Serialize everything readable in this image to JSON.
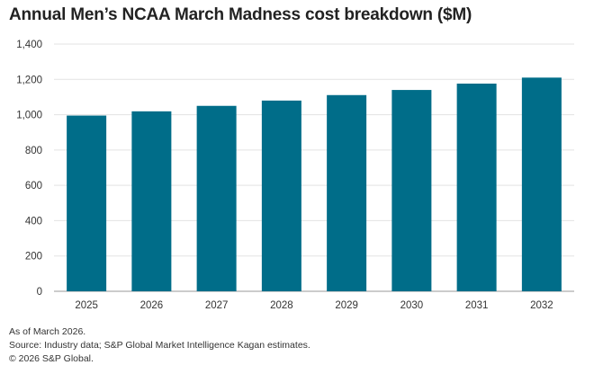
{
  "chart_data": {
    "type": "bar",
    "title": "Annual Men’s NCAA March Madness cost breakdown ($M)",
    "categories": [
      "2025",
      "2026",
      "2027",
      "2028",
      "2029",
      "2030",
      "2031",
      "2032"
    ],
    "values": [
      995,
      1019,
      1050,
      1080,
      1111,
      1140,
      1176,
      1210
    ],
    "xlabel": "",
    "ylabel": "",
    "ylim": [
      0,
      1400
    ],
    "yticks": [
      "0",
      "200",
      "400",
      "600",
      "800",
      "1,000",
      "1,200",
      "1,400"
    ],
    "grid": true,
    "bar_color": "#006d89",
    "grid_color": "#e3e3e3"
  },
  "footer": {
    "note": "As of March 2026.",
    "source": "Source: Industry data; S&P Global Market Intelligence Kagan estimates.",
    "copyright": "© 2026 S&P Global."
  }
}
